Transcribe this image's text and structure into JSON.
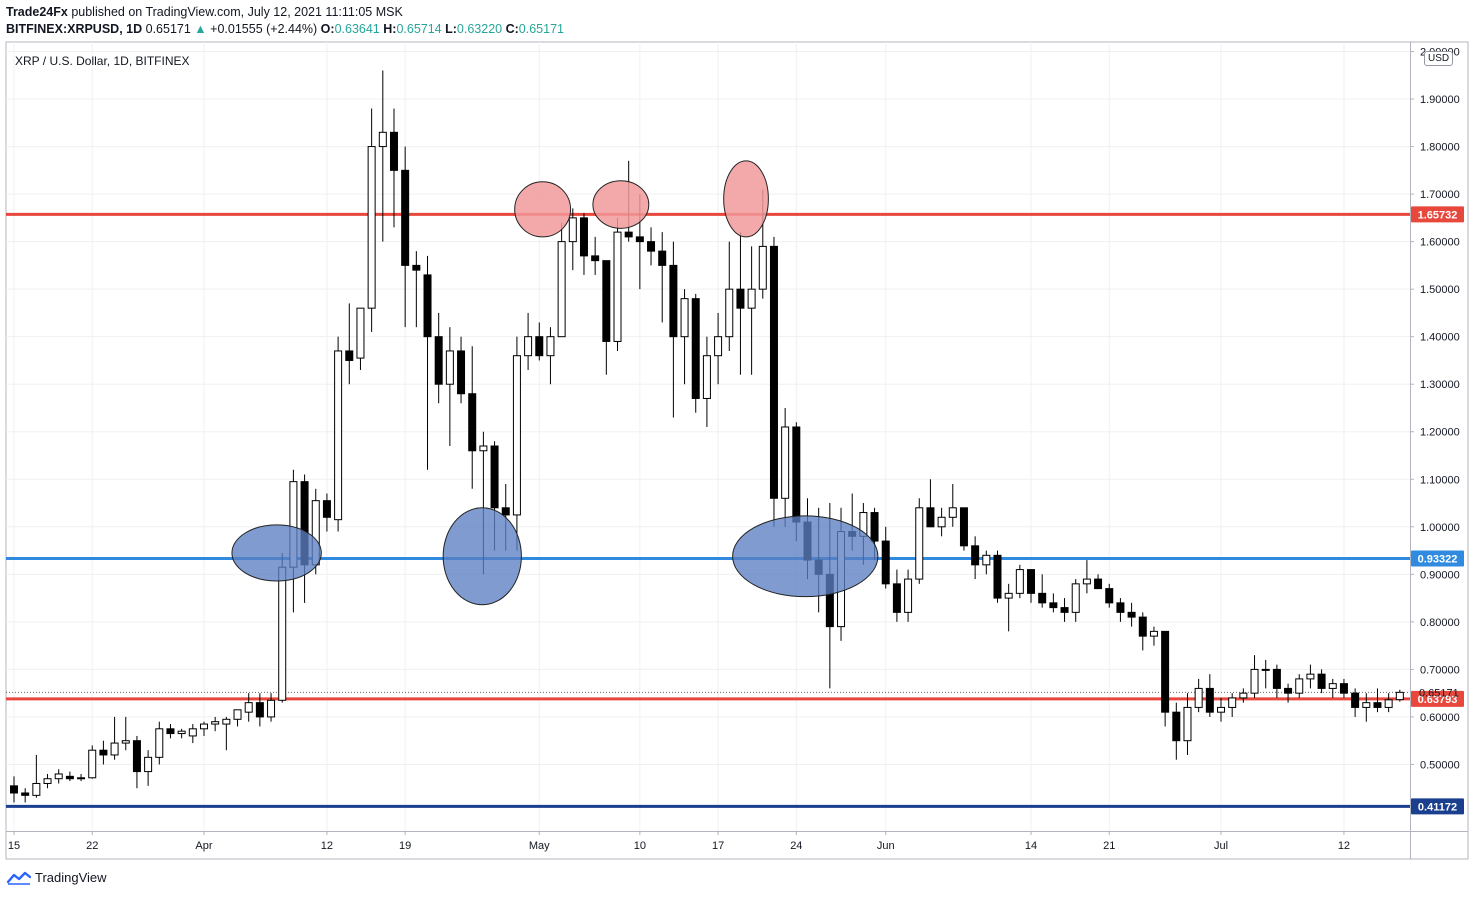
{
  "header": {
    "publisher": "Trade24Fx",
    "published_text": "published on TradingView.com, July 12, 2021 11:11:05 MSK",
    "symbol": "BITFINEX:XRPUSD, 1D",
    "last": "0.65171",
    "change": "+0.01555 (+2.44%)",
    "open_label": "O:",
    "open": "0.63641",
    "high_label": "H:",
    "high": "0.65714",
    "low_label": "L:",
    "low": "0.63220",
    "close_label": "C:",
    "close": "0.65171"
  },
  "legend_title": "XRP / U.S. Dollar, 1D, BITFINEX",
  "currency_label": "USD",
  "footer": {
    "brand": "TradingView"
  },
  "colors": {
    "resistance": "#e8473c",
    "support": "#2f8ae0",
    "deep_support": "#1a3f8f",
    "zone_red": "#f19a9a",
    "zone_blue": "#5b7fc1",
    "price_line": "#000000",
    "grid": "#eef0f3"
  },
  "chart_data": {
    "type": "candlestick",
    "title": "XRP / U.S. Dollar, 1D, BITFINEX",
    "ylim": [
      0.36,
      2.02
    ],
    "y_ticks": [
      0.5,
      0.6,
      0.7,
      0.8,
      0.9,
      1.0,
      1.1,
      1.2,
      1.3,
      1.4,
      1.5,
      1.6,
      1.7,
      1.8,
      1.9,
      2.0
    ],
    "y_tick_labels": [
      "0.50000",
      "0.60000",
      "0.70000",
      "0.80000",
      "0.90000",
      "1.00000",
      "1.10000",
      "1.20000",
      "1.30000",
      "1.40000",
      "1.50000",
      "1.60000",
      "1.70000",
      "1.80000",
      "1.90000",
      "2.00000"
    ],
    "x_ticks": [
      {
        "index": 0,
        "label": "15"
      },
      {
        "index": 7,
        "label": "22"
      },
      {
        "index": 17,
        "label": "Apr"
      },
      {
        "index": 28,
        "label": "12"
      },
      {
        "index": 35,
        "label": "19"
      },
      {
        "index": 47,
        "label": "May"
      },
      {
        "index": 56,
        "label": "10"
      },
      {
        "index": 63,
        "label": "17"
      },
      {
        "index": 70,
        "label": "24"
      },
      {
        "index": 78,
        "label": "Jun"
      },
      {
        "index": 91,
        "label": "14"
      },
      {
        "index": 98,
        "label": "21"
      },
      {
        "index": 108,
        "label": "Jul"
      },
      {
        "index": 119,
        "label": "12"
      }
    ],
    "horizontal_levels": [
      {
        "value": 1.65732,
        "label": "1.65732",
        "color_key": "resistance"
      },
      {
        "value": 0.93322,
        "label": "0.93322",
        "color_key": "support"
      },
      {
        "value": 0.63793,
        "label": "0.63793",
        "color_key": "resistance"
      },
      {
        "value": 0.41172,
        "label": "0.41172",
        "color_key": "deep_support"
      }
    ],
    "last_price": {
      "value": 0.65171,
      "label": "0.65171"
    },
    "zones": [
      {
        "type": "resistance",
        "center_index": 47.3,
        "center_value": 1.668,
        "rx_bars": 2.5,
        "ry_value": 0.058
      },
      {
        "type": "resistance",
        "center_index": 54.3,
        "center_value": 1.678,
        "rx_bars": 2.5,
        "ry_value": 0.05
      },
      {
        "type": "resistance",
        "center_index": 65.5,
        "center_value": 1.69,
        "rx_bars": 2.0,
        "ry_value": 0.08
      },
      {
        "type": "support",
        "center_index": 23.5,
        "center_value": 0.945,
        "rx_bars": 4.0,
        "ry_value": 0.059
      },
      {
        "type": "support",
        "center_index": 41.9,
        "center_value": 0.938,
        "rx_bars": 3.5,
        "ry_value": 0.102
      },
      {
        "type": "support",
        "center_index": 70.8,
        "center_value": 0.938,
        "rx_bars": 6.5,
        "ry_value": 0.085
      }
    ],
    "candles": [
      {
        "o": 0.455,
        "h": 0.475,
        "l": 0.42,
        "c": 0.44
      },
      {
        "o": 0.44,
        "h": 0.45,
        "l": 0.42,
        "c": 0.435
      },
      {
        "o": 0.435,
        "h": 0.52,
        "l": 0.43,
        "c": 0.46
      },
      {
        "o": 0.46,
        "h": 0.48,
        "l": 0.45,
        "c": 0.47
      },
      {
        "o": 0.47,
        "h": 0.49,
        "l": 0.46,
        "c": 0.48
      },
      {
        "o": 0.475,
        "h": 0.485,
        "l": 0.465,
        "c": 0.47
      },
      {
        "o": 0.47,
        "h": 0.48,
        "l": 0.465,
        "c": 0.472
      },
      {
        "o": 0.472,
        "h": 0.54,
        "l": 0.47,
        "c": 0.53
      },
      {
        "o": 0.53,
        "h": 0.55,
        "l": 0.5,
        "c": 0.52
      },
      {
        "o": 0.52,
        "h": 0.6,
        "l": 0.51,
        "c": 0.545
      },
      {
        "o": 0.545,
        "h": 0.6,
        "l": 0.53,
        "c": 0.55
      },
      {
        "o": 0.55,
        "h": 0.56,
        "l": 0.45,
        "c": 0.485
      },
      {
        "o": 0.485,
        "h": 0.53,
        "l": 0.455,
        "c": 0.515
      },
      {
        "o": 0.515,
        "h": 0.59,
        "l": 0.5,
        "c": 0.575
      },
      {
        "o": 0.575,
        "h": 0.585,
        "l": 0.555,
        "c": 0.565
      },
      {
        "o": 0.565,
        "h": 0.575,
        "l": 0.555,
        "c": 0.57
      },
      {
        "o": 0.56,
        "h": 0.585,
        "l": 0.545,
        "c": 0.575
      },
      {
        "o": 0.575,
        "h": 0.59,
        "l": 0.56,
        "c": 0.585
      },
      {
        "o": 0.585,
        "h": 0.6,
        "l": 0.57,
        "c": 0.59
      },
      {
        "o": 0.585,
        "h": 0.6,
        "l": 0.53,
        "c": 0.595
      },
      {
        "o": 0.595,
        "h": 0.61,
        "l": 0.58,
        "c": 0.615
      },
      {
        "o": 0.61,
        "h": 0.65,
        "l": 0.59,
        "c": 0.63
      },
      {
        "o": 0.63,
        "h": 0.65,
        "l": 0.58,
        "c": 0.6
      },
      {
        "o": 0.6,
        "h": 0.65,
        "l": 0.59,
        "c": 0.635
      },
      {
        "o": 0.635,
        "h": 0.945,
        "l": 0.63,
        "c": 0.915
      },
      {
        "o": 0.915,
        "h": 1.12,
        "l": 0.82,
        "c": 1.095
      },
      {
        "o": 1.095,
        "h": 1.11,
        "l": 0.84,
        "c": 0.92
      },
      {
        "o": 0.92,
        "h": 1.08,
        "l": 0.9,
        "c": 1.055
      },
      {
        "o": 1.055,
        "h": 1.07,
        "l": 0.99,
        "c": 1.02
      },
      {
        "o": 1.015,
        "h": 1.4,
        "l": 0.99,
        "c": 1.37
      },
      {
        "o": 1.37,
        "h": 1.47,
        "l": 1.3,
        "c": 1.35
      },
      {
        "o": 1.355,
        "h": 1.46,
        "l": 1.33,
        "c": 1.46
      },
      {
        "o": 1.46,
        "h": 1.88,
        "l": 1.41,
        "c": 1.8
      },
      {
        "o": 1.8,
        "h": 1.96,
        "l": 1.6,
        "c": 1.83
      },
      {
        "o": 1.83,
        "h": 1.88,
        "l": 1.63,
        "c": 1.75
      },
      {
        "o": 1.75,
        "h": 1.8,
        "l": 1.42,
        "c": 1.55
      },
      {
        "o": 1.55,
        "h": 1.58,
        "l": 1.42,
        "c": 1.54
      },
      {
        "o": 1.53,
        "h": 1.57,
        "l": 1.12,
        "c": 1.4
      },
      {
        "o": 1.4,
        "h": 1.45,
        "l": 1.26,
        "c": 1.3
      },
      {
        "o": 1.3,
        "h": 1.42,
        "l": 1.17,
        "c": 1.37
      },
      {
        "o": 1.37,
        "h": 1.4,
        "l": 1.26,
        "c": 1.28
      },
      {
        "o": 1.28,
        "h": 1.38,
        "l": 1.08,
        "c": 1.16
      },
      {
        "o": 1.16,
        "h": 1.2,
        "l": 0.9,
        "c": 1.17
      },
      {
        "o": 1.17,
        "h": 1.18,
        "l": 0.95,
        "c": 1.04
      },
      {
        "o": 1.04,
        "h": 1.09,
        "l": 0.95,
        "c": 1.025
      },
      {
        "o": 1.025,
        "h": 1.4,
        "l": 0.95,
        "c": 1.36
      },
      {
        "o": 1.36,
        "h": 1.45,
        "l": 1.33,
        "c": 1.4
      },
      {
        "o": 1.4,
        "h": 1.43,
        "l": 1.35,
        "c": 1.36
      },
      {
        "o": 1.36,
        "h": 1.42,
        "l": 1.3,
        "c": 1.4
      },
      {
        "o": 1.4,
        "h": 1.64,
        "l": 1.4,
        "c": 1.6
      },
      {
        "o": 1.6,
        "h": 1.67,
        "l": 1.54,
        "c": 1.65
      },
      {
        "o": 1.65,
        "h": 1.66,
        "l": 1.53,
        "c": 1.57
      },
      {
        "o": 1.57,
        "h": 1.61,
        "l": 1.53,
        "c": 1.56
      },
      {
        "o": 1.56,
        "h": 1.56,
        "l": 1.32,
        "c": 1.39
      },
      {
        "o": 1.39,
        "h": 1.65,
        "l": 1.37,
        "c": 1.62
      },
      {
        "o": 1.62,
        "h": 1.77,
        "l": 1.6,
        "c": 1.61
      },
      {
        "o": 1.61,
        "h": 1.7,
        "l": 1.5,
        "c": 1.6
      },
      {
        "o": 1.6,
        "h": 1.63,
        "l": 1.55,
        "c": 1.58
      },
      {
        "o": 1.58,
        "h": 1.62,
        "l": 1.43,
        "c": 1.55
      },
      {
        "o": 1.55,
        "h": 1.6,
        "l": 1.23,
        "c": 1.4
      },
      {
        "o": 1.4,
        "h": 1.5,
        "l": 1.3,
        "c": 1.48
      },
      {
        "o": 1.48,
        "h": 1.49,
        "l": 1.24,
        "c": 1.27
      },
      {
        "o": 1.27,
        "h": 1.4,
        "l": 1.21,
        "c": 1.36
      },
      {
        "o": 1.36,
        "h": 1.45,
        "l": 1.3,
        "c": 1.4
      },
      {
        "o": 1.4,
        "h": 1.6,
        "l": 1.37,
        "c": 1.5
      },
      {
        "o": 1.5,
        "h": 1.62,
        "l": 1.32,
        "c": 1.46
      },
      {
        "o": 1.46,
        "h": 1.59,
        "l": 1.32,
        "c": 1.5
      },
      {
        "o": 1.5,
        "h": 1.71,
        "l": 1.48,
        "c": 1.59
      },
      {
        "o": 1.59,
        "h": 1.61,
        "l": 1.0,
        "c": 1.06
      },
      {
        "o": 1.06,
        "h": 1.25,
        "l": 1.0,
        "c": 1.21
      },
      {
        "o": 1.21,
        "h": 1.22,
        "l": 0.97,
        "c": 1.01
      },
      {
        "o": 1.01,
        "h": 1.06,
        "l": 0.89,
        "c": 0.93
      },
      {
        "o": 0.93,
        "h": 1.04,
        "l": 0.82,
        "c": 0.9
      },
      {
        "o": 0.9,
        "h": 1.05,
        "l": 0.66,
        "c": 0.79
      },
      {
        "o": 0.79,
        "h": 1.04,
        "l": 0.76,
        "c": 0.99
      },
      {
        "o": 0.99,
        "h": 1.07,
        "l": 0.95,
        "c": 0.98
      },
      {
        "o": 0.98,
        "h": 1.05,
        "l": 0.92,
        "c": 1.03
      },
      {
        "o": 1.03,
        "h": 1.04,
        "l": 0.93,
        "c": 0.97
      },
      {
        "o": 0.97,
        "h": 1.0,
        "l": 0.87,
        "c": 0.88
      },
      {
        "o": 0.88,
        "h": 0.91,
        "l": 0.8,
        "c": 0.82
      },
      {
        "o": 0.82,
        "h": 0.91,
        "l": 0.8,
        "c": 0.89
      },
      {
        "o": 0.89,
        "h": 1.06,
        "l": 0.88,
        "c": 1.04
      },
      {
        "o": 1.04,
        "h": 1.1,
        "l": 1.01,
        "c": 1.0
      },
      {
        "o": 1.0,
        "h": 1.04,
        "l": 0.98,
        "c": 1.02
      },
      {
        "o": 1.02,
        "h": 1.09,
        "l": 1.0,
        "c": 1.04
      },
      {
        "o": 1.04,
        "h": 1.04,
        "l": 0.95,
        "c": 0.96
      },
      {
        "o": 0.96,
        "h": 0.98,
        "l": 0.89,
        "c": 0.92
      },
      {
        "o": 0.92,
        "h": 0.95,
        "l": 0.9,
        "c": 0.94
      },
      {
        "o": 0.94,
        "h": 0.95,
        "l": 0.84,
        "c": 0.85
      },
      {
        "o": 0.85,
        "h": 0.88,
        "l": 0.78,
        "c": 0.86
      },
      {
        "o": 0.86,
        "h": 0.92,
        "l": 0.85,
        "c": 0.91
      },
      {
        "o": 0.91,
        "h": 0.91,
        "l": 0.84,
        "c": 0.86
      },
      {
        "o": 0.86,
        "h": 0.9,
        "l": 0.83,
        "c": 0.84
      },
      {
        "o": 0.84,
        "h": 0.86,
        "l": 0.82,
        "c": 0.83
      },
      {
        "o": 0.83,
        "h": 0.85,
        "l": 0.8,
        "c": 0.82
      },
      {
        "o": 0.82,
        "h": 0.89,
        "l": 0.8,
        "c": 0.88
      },
      {
        "o": 0.88,
        "h": 0.93,
        "l": 0.86,
        "c": 0.89
      },
      {
        "o": 0.89,
        "h": 0.9,
        "l": 0.87,
        "c": 0.87
      },
      {
        "o": 0.87,
        "h": 0.88,
        "l": 0.83,
        "c": 0.84
      },
      {
        "o": 0.84,
        "h": 0.85,
        "l": 0.8,
        "c": 0.82
      },
      {
        "o": 0.82,
        "h": 0.84,
        "l": 0.79,
        "c": 0.81
      },
      {
        "o": 0.81,
        "h": 0.82,
        "l": 0.74,
        "c": 0.77
      },
      {
        "o": 0.77,
        "h": 0.79,
        "l": 0.75,
        "c": 0.78
      },
      {
        "o": 0.78,
        "h": 0.78,
        "l": 0.58,
        "c": 0.61
      },
      {
        "o": 0.61,
        "h": 0.63,
        "l": 0.51,
        "c": 0.55
      },
      {
        "o": 0.55,
        "h": 0.65,
        "l": 0.52,
        "c": 0.62
      },
      {
        "o": 0.62,
        "h": 0.68,
        "l": 0.61,
        "c": 0.66
      },
      {
        "o": 0.66,
        "h": 0.69,
        "l": 0.6,
        "c": 0.61
      },
      {
        "o": 0.61,
        "h": 0.64,
        "l": 0.59,
        "c": 0.62
      },
      {
        "o": 0.62,
        "h": 0.65,
        "l": 0.6,
        "c": 0.64
      },
      {
        "o": 0.64,
        "h": 0.66,
        "l": 0.63,
        "c": 0.65
      },
      {
        "o": 0.65,
        "h": 0.73,
        "l": 0.64,
        "c": 0.7
      },
      {
        "o": 0.7,
        "h": 0.72,
        "l": 0.66,
        "c": 0.7
      },
      {
        "o": 0.7,
        "h": 0.71,
        "l": 0.64,
        "c": 0.66
      },
      {
        "o": 0.66,
        "h": 0.67,
        "l": 0.63,
        "c": 0.65
      },
      {
        "o": 0.65,
        "h": 0.69,
        "l": 0.64,
        "c": 0.68
      },
      {
        "o": 0.68,
        "h": 0.71,
        "l": 0.66,
        "c": 0.69
      },
      {
        "o": 0.69,
        "h": 0.7,
        "l": 0.65,
        "c": 0.66
      },
      {
        "o": 0.66,
        "h": 0.68,
        "l": 0.64,
        "c": 0.67
      },
      {
        "o": 0.67,
        "h": 0.68,
        "l": 0.64,
        "c": 0.65
      },
      {
        "o": 0.65,
        "h": 0.66,
        "l": 0.6,
        "c": 0.62
      },
      {
        "o": 0.62,
        "h": 0.65,
        "l": 0.59,
        "c": 0.63
      },
      {
        "o": 0.63,
        "h": 0.66,
        "l": 0.61,
        "c": 0.62
      },
      {
        "o": 0.62,
        "h": 0.65,
        "l": 0.61,
        "c": 0.636
      },
      {
        "o": 0.63641,
        "h": 0.65714,
        "l": 0.6322,
        "c": 0.65171
      }
    ]
  }
}
